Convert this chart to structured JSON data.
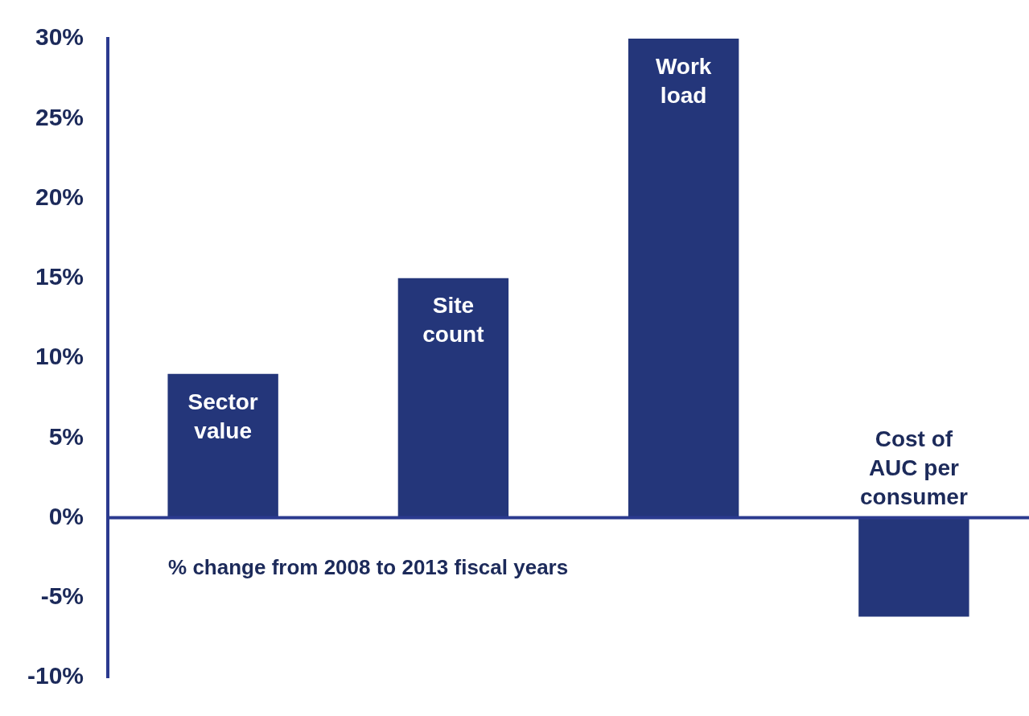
{
  "chart_data": {
    "type": "bar",
    "categories": [
      "Sector value",
      "Site count",
      "Work load",
      "Cost of AUC per consumer"
    ],
    "values": [
      9,
      15,
      30,
      -6.2
    ],
    "color": "#24367a",
    "ylim": [
      -10,
      30
    ],
    "yticks": [
      {
        "value": -10,
        "label": "-10%"
      },
      {
        "value": -5,
        "label": "-5%"
      },
      {
        "value": 0,
        "label": "0%"
      },
      {
        "value": 5,
        "label": "5%"
      },
      {
        "value": 10,
        "label": "10%"
      },
      {
        "value": 15,
        "label": "15%"
      },
      {
        "value": 20,
        "label": "20%"
      },
      {
        "value": 25,
        "label": "25%"
      },
      {
        "value": 30,
        "label": "30%"
      }
    ],
    "tick_labels": "y",
    "ref_lines": [
      {
        "axis": "y",
        "value": 0,
        "color": "#2b3a8f"
      }
    ],
    "grid": false,
    "legend": false,
    "annotations": [
      "% change from 2008 to 2013 fiscal years"
    ]
  }
}
